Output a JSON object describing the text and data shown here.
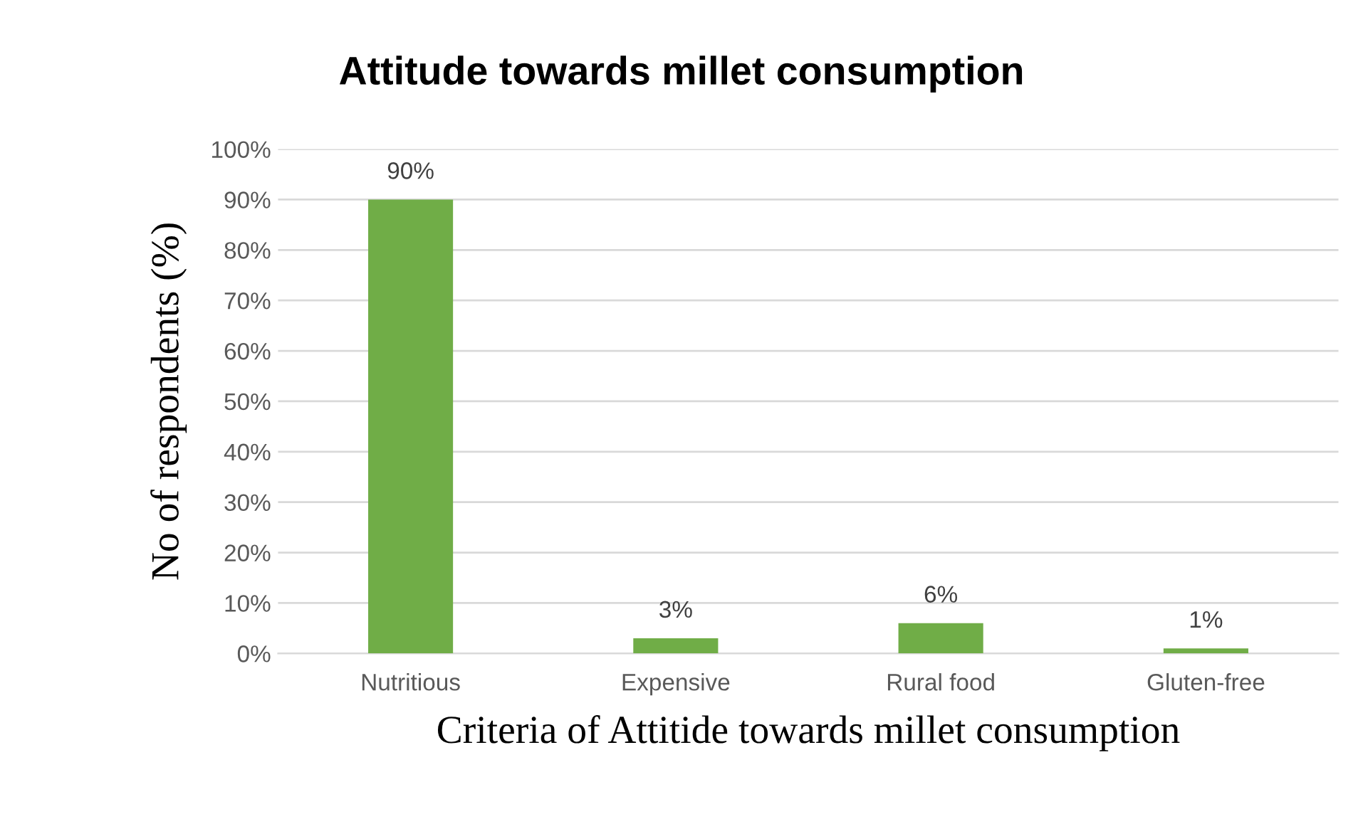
{
  "chart_data": {
    "type": "bar",
    "title": "Attitude towards millet consumption",
    "xlabel": "Criteria of Attitide towards millet consumption",
    "ylabel": "No of respondents (%)",
    "categories": [
      "Nutritious",
      "Expensive",
      "Rural food",
      "Gluten-free"
    ],
    "values": [
      90,
      3,
      6,
      1
    ],
    "color": "#70ad47",
    "value_labels": [
      "90%",
      "3%",
      "6%",
      "1%"
    ],
    "ylim": [
      0,
      100
    ],
    "yticks": [
      {
        "value": 0,
        "label": "0%"
      },
      {
        "value": 10,
        "label": "10%"
      },
      {
        "value": 20,
        "label": "20%"
      },
      {
        "value": 30,
        "label": "30%"
      },
      {
        "value": 40,
        "label": "40%"
      },
      {
        "value": 50,
        "label": "50%"
      },
      {
        "value": 60,
        "label": "60%"
      },
      {
        "value": 70,
        "label": "70%"
      },
      {
        "value": 80,
        "label": "80%"
      },
      {
        "value": 90,
        "label": "90%"
      },
      {
        "value": 100,
        "label": "100%"
      }
    ],
    "grid": "y",
    "legend": false
  }
}
